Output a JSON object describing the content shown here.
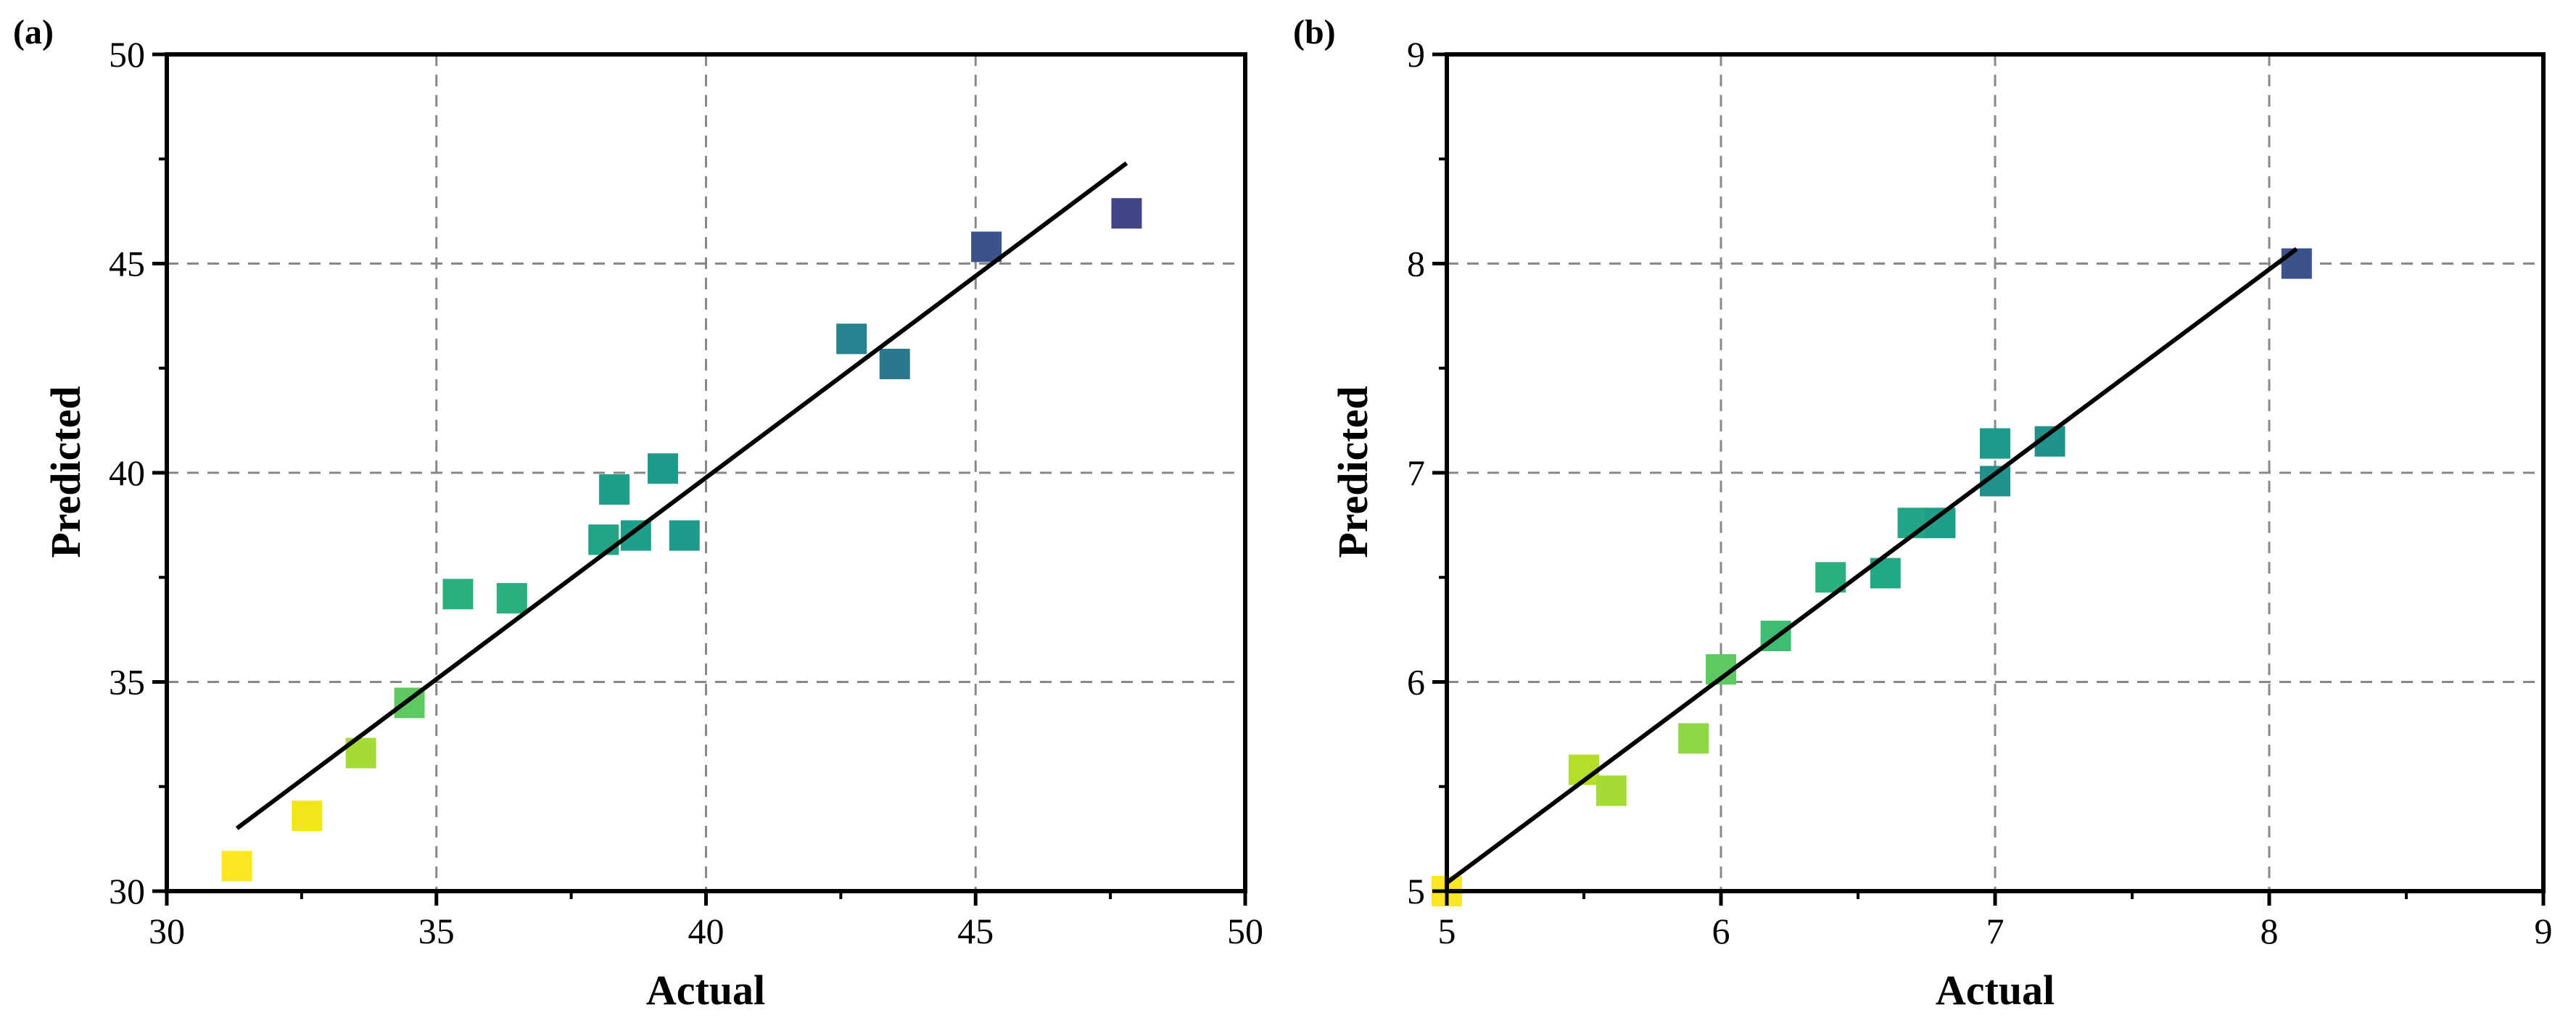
{
  "chart_data": [
    {
      "panel_label": "(a)",
      "type": "scatter",
      "xlabel": "Actual",
      "ylabel": "Predicted",
      "xlim": [
        30,
        50
      ],
      "ylim": [
        30,
        50
      ],
      "xticks": [
        30,
        35,
        40,
        45,
        50
      ],
      "yticks": [
        30,
        35,
        40,
        45,
        50
      ],
      "x_tick_labels": [
        "30",
        "35",
        "40",
        "45",
        "50"
      ],
      "y_tick_labels": [
        "30",
        "35",
        "40",
        "45",
        "50"
      ],
      "grid": true,
      "grid_style": "dashed",
      "marker": "square",
      "color_scale": "viridis (high values dark blue, low values yellow)",
      "points": [
        {
          "x": 31.3,
          "y": 30.6,
          "color": "#fde725"
        },
        {
          "x": 32.6,
          "y": 31.8,
          "color": "#f2e51c"
        },
        {
          "x": 33.6,
          "y": 33.3,
          "color": "#a5db36"
        },
        {
          "x": 34.5,
          "y": 34.5,
          "color": "#5ec962"
        },
        {
          "x": 35.4,
          "y": 37.1,
          "color": "#2ab07f"
        },
        {
          "x": 36.4,
          "y": 37.0,
          "color": "#2ab07f"
        },
        {
          "x": 38.1,
          "y": 38.4,
          "color": "#21a585"
        },
        {
          "x": 38.7,
          "y": 38.5,
          "color": "#1f9e89"
        },
        {
          "x": 38.3,
          "y": 39.6,
          "color": "#1f9e89"
        },
        {
          "x": 39.2,
          "y": 40.1,
          "color": "#1f9a8a"
        },
        {
          "x": 39.6,
          "y": 38.5,
          "color": "#1f9a8a"
        },
        {
          "x": 42.7,
          "y": 43.2,
          "color": "#26828e"
        },
        {
          "x": 43.5,
          "y": 42.6,
          "color": "#2a788e"
        },
        {
          "x": 45.2,
          "y": 45.4,
          "color": "#3b528b"
        },
        {
          "x": 47.8,
          "y": 46.2,
          "color": "#414487"
        }
      ],
      "fit_line": {
        "x": [
          31.3,
          47.8
        ],
        "y": [
          31.5,
          47.4
        ]
      }
    },
    {
      "panel_label": "(b)",
      "type": "scatter",
      "xlabel": "Actual",
      "ylabel": "Predicted",
      "xlim": [
        5,
        9
      ],
      "ylim": [
        5,
        9
      ],
      "xticks": [
        5,
        6,
        7,
        8,
        9
      ],
      "yticks": [
        5,
        6,
        7,
        8,
        9
      ],
      "x_tick_labels": [
        "5",
        "6",
        "7",
        "8",
        "9"
      ],
      "y_tick_labels": [
        "5",
        "6",
        "7",
        "8",
        "9"
      ],
      "grid": true,
      "grid_style": "dashed",
      "marker": "square",
      "color_scale": "viridis (high values dark blue, low values yellow)",
      "points": [
        {
          "x": 5.0,
          "y": 5.0,
          "color": "#fde725"
        },
        {
          "x": 5.5,
          "y": 5.58,
          "color": "#b5de2b"
        },
        {
          "x": 5.6,
          "y": 5.48,
          "color": "#a5db36"
        },
        {
          "x": 5.9,
          "y": 5.73,
          "color": "#8fd744"
        },
        {
          "x": 6.0,
          "y": 6.06,
          "color": "#5ec962"
        },
        {
          "x": 6.2,
          "y": 6.22,
          "color": "#3fbc73"
        },
        {
          "x": 6.4,
          "y": 6.5,
          "color": "#2ab07f"
        },
        {
          "x": 6.6,
          "y": 6.52,
          "color": "#22a884"
        },
        {
          "x": 6.7,
          "y": 6.76,
          "color": "#21a585"
        },
        {
          "x": 6.8,
          "y": 6.76,
          "color": "#1f9e89"
        },
        {
          "x": 7.0,
          "y": 7.14,
          "color": "#1f9a8a"
        },
        {
          "x": 7.0,
          "y": 6.96,
          "color": "#21918c"
        },
        {
          "x": 7.2,
          "y": 7.15,
          "color": "#21918c"
        },
        {
          "x": 8.1,
          "y": 8.0,
          "color": "#3b528b"
        }
      ],
      "fit_line": {
        "x": [
          5.0,
          8.1
        ],
        "y": [
          5.04,
          8.07
        ]
      }
    }
  ]
}
